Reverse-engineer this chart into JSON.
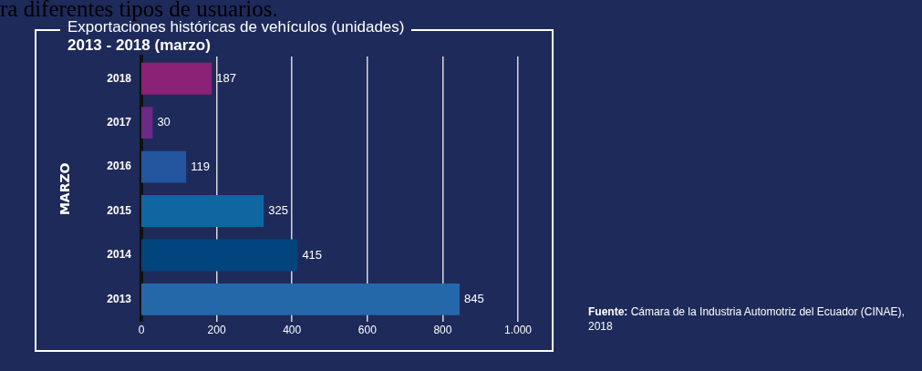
{
  "chart_data": {
    "type": "bar",
    "orientation": "horizontal",
    "title": "Exportaciones históricas de vehículos (unidades)",
    "subtitle": "2013 - 2018 (marzo)",
    "ylabel": "MARZO",
    "categories": [
      "2018",
      "2017",
      "2016",
      "2015",
      "2014",
      "2013"
    ],
    "values": [
      187,
      30,
      119,
      325,
      415,
      845
    ],
    "colors": [
      "#8b2275",
      "#6a2a85",
      "#2456a0",
      "#1066a0",
      "#02447e",
      "#2468aa"
    ],
    "xlim": [
      0,
      1000
    ],
    "xticks": [
      0,
      200,
      400,
      600,
      800,
      {
        "value": 1000,
        "label": "1.000"
      }
    ],
    "grid": "x",
    "data_labels": true,
    "annotations": [
      "ra diferentes tipos de usuarios.",
      "Fuente: Cámara de la Industria Automotriz del Ecuador (CINAE), 2018"
    ]
  }
}
